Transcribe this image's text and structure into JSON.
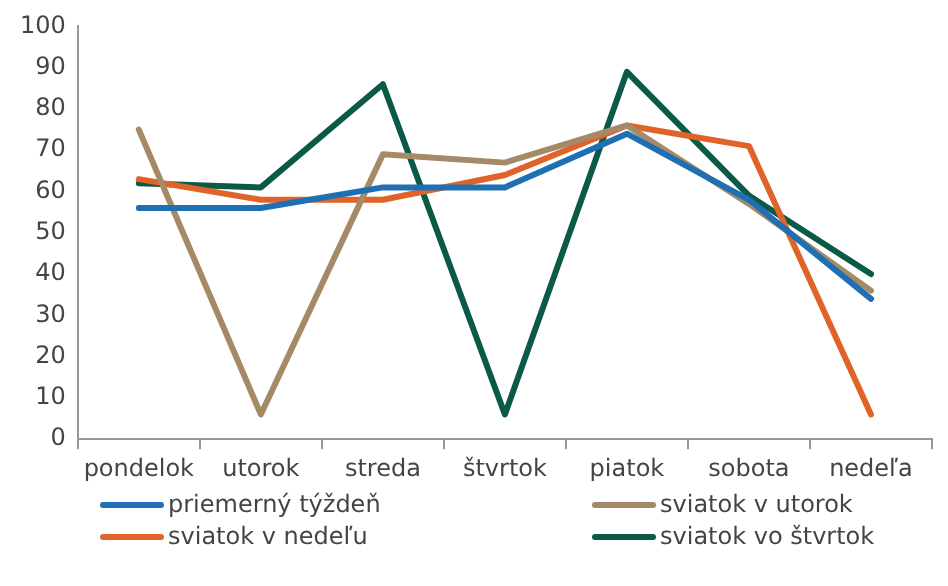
{
  "chart_data": {
    "type": "line",
    "categories": [
      "pondelok",
      "utorok",
      "streda",
      "štvrtok",
      "piatok",
      "sobota",
      "nedeľa"
    ],
    "series": [
      {
        "name": "priemerný týždeň",
        "color": "#1f6fb4",
        "values": [
          56,
          56,
          61,
          61,
          74,
          58,
          34
        ]
      },
      {
        "name": "sviatok v utorok",
        "color": "#a58a68",
        "values": [
          75,
          6,
          69,
          67,
          76,
          57,
          36
        ]
      },
      {
        "name": "sviatok v nedeľu",
        "color": "#e0642a",
        "values": [
          63,
          58,
          58,
          64,
          76,
          71,
          6
        ]
      },
      {
        "name": "sviatok vo štvrtok",
        "color": "#0b5a48",
        "values": [
          62,
          61,
          86,
          6,
          89,
          59,
          40
        ]
      }
    ],
    "ylim": [
      0,
      100
    ],
    "yticks": [
      0,
      10,
      20,
      30,
      40,
      50,
      60,
      70,
      80,
      90,
      100
    ],
    "grid": false,
    "legend": "bottom",
    "marker": "none",
    "line_style": "solid"
  }
}
